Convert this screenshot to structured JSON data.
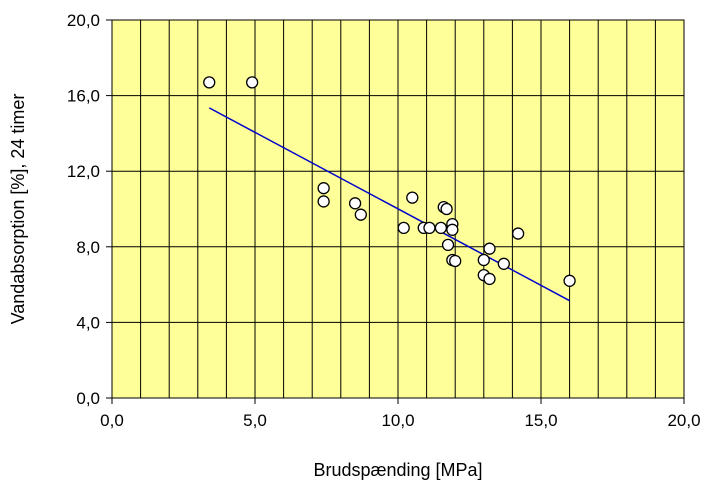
{
  "chart_data": {
    "type": "scatter",
    "title": "",
    "xlabel": "Brudspænding [MPa]",
    "ylabel": "Vandabsorption [%], 24 timer",
    "xlim": [
      0,
      20
    ],
    "ylim": [
      0,
      20
    ],
    "x_ticks": [
      "0,0",
      "5,0",
      "10,0",
      "15,0",
      "20,0"
    ],
    "y_ticks": [
      "0,0",
      "4,0",
      "8,0",
      "12,0",
      "16,0",
      "20,0"
    ],
    "x_minor_step": 1,
    "y_major_step": 4,
    "grid": true,
    "plot_background": "#ffff99",
    "grid_color": "#000000",
    "marker_fill": "#ffffff",
    "marker_edge": "#000000",
    "trendline_color": "#0000cc",
    "points": [
      {
        "x": 3.4,
        "y": 16.7
      },
      {
        "x": 4.9,
        "y": 16.7
      },
      {
        "x": 7.4,
        "y": 11.1
      },
      {
        "x": 7.4,
        "y": 10.4
      },
      {
        "x": 8.5,
        "y": 10.3
      },
      {
        "x": 8.7,
        "y": 9.7
      },
      {
        "x": 10.2,
        "y": 9.0
      },
      {
        "x": 10.5,
        "y": 10.6
      },
      {
        "x": 10.9,
        "y": 9.0
      },
      {
        "x": 11.1,
        "y": 9.0
      },
      {
        "x": 11.5,
        "y": 9.0
      },
      {
        "x": 11.6,
        "y": 10.1
      },
      {
        "x": 11.7,
        "y": 10.0
      },
      {
        "x": 11.75,
        "y": 8.1
      },
      {
        "x": 11.9,
        "y": 9.2
      },
      {
        "x": 11.9,
        "y": 8.9
      },
      {
        "x": 11.9,
        "y": 7.3
      },
      {
        "x": 12.0,
        "y": 7.25
      },
      {
        "x": 13.0,
        "y": 7.3
      },
      {
        "x": 13.0,
        "y": 6.5
      },
      {
        "x": 13.2,
        "y": 7.9
      },
      {
        "x": 13.2,
        "y": 6.3
      },
      {
        "x": 13.7,
        "y": 7.1
      },
      {
        "x": 14.2,
        "y": 8.7
      },
      {
        "x": 16.0,
        "y": 6.2
      }
    ],
    "trendline": {
      "x": [
        3.4,
        16.0
      ],
      "y": [
        15.35,
        5.15
      ]
    }
  }
}
